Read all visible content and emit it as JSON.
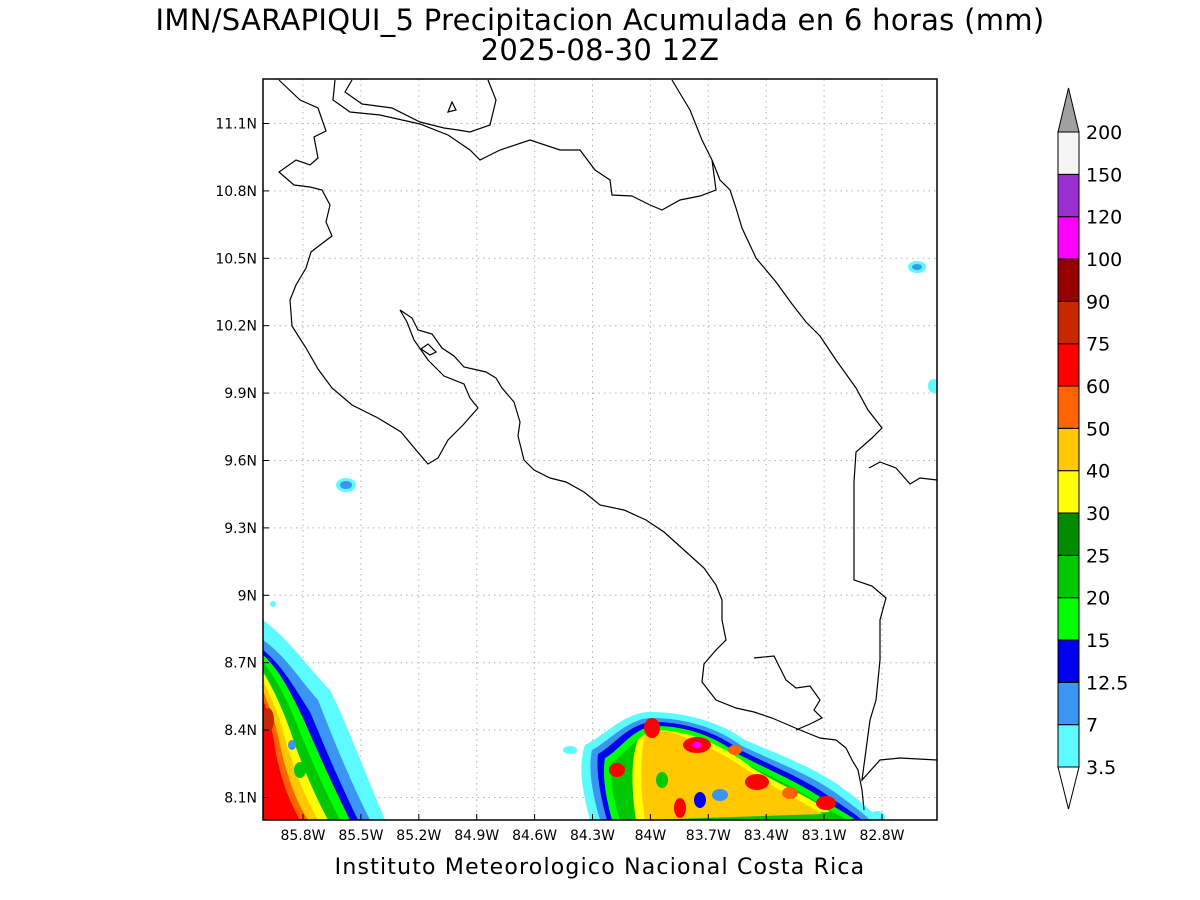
{
  "title": {
    "line1": "IMN/SARAPIQUI_5 Precipitacion Acumulada en 6 horas (mm)",
    "line2": "2025-08-30 12Z"
  },
  "footer": "Instituto Meteorologico Nacional Costa Rica",
  "map": {
    "lon_range": [
      -86.0,
      -82.5
    ],
    "lat_range": [
      8.0,
      11.3
    ],
    "x_ticks": [
      "85.8W",
      "85.5W",
      "85.2W",
      "84.9W",
      "84.6W",
      "84.3W",
      "84W",
      "83.7W",
      "83.4W",
      "83.1W",
      "82.8W"
    ],
    "y_ticks": [
      "8.1N",
      "8.4N",
      "8.7N",
      "9N",
      "9.3N",
      "9.6N",
      "9.9N",
      "10.2N",
      "10.5N",
      "10.8N",
      "11.1N"
    ],
    "gridlines": "dotted"
  },
  "colorbar": {
    "labels": [
      "3.5",
      "7",
      "12.5",
      "15",
      "20",
      "25",
      "30",
      "40",
      "50",
      "60",
      "75",
      "90",
      "100",
      "120",
      "150",
      "200"
    ],
    "colors": [
      "#5bfbff",
      "#3a96f2",
      "#0000f0",
      "#00ff00",
      "#00c800",
      "#008c00",
      "#ffff00",
      "#ffc800",
      "#ff6400",
      "#ff0000",
      "#c82800",
      "#960000",
      "#ff00ff",
      "#9b30d0",
      "#f5f5f5",
      "#a0a0a0"
    ]
  }
}
